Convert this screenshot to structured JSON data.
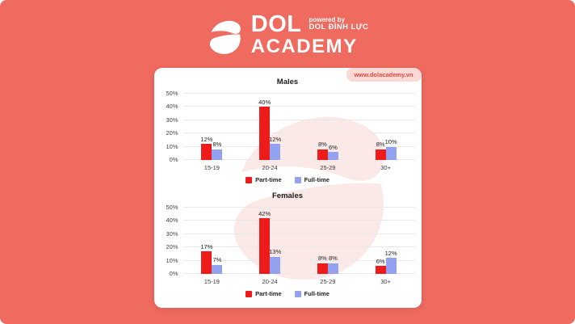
{
  "header": {
    "logo_word": "DOL",
    "logo_word2": "ACADEMY",
    "powered_by": "powered by",
    "powered_brand": "DOL ĐÌNH LỰC"
  },
  "card": {
    "website_badge": "www.dolacademy.vn"
  },
  "colors": {
    "background": "#EF6A5F",
    "card": "#FFFFFF",
    "part_time": "#EE1B1B",
    "full_time": "#92A1F0",
    "badge_bg": "#FBD9D5",
    "badge_text": "#E8453C",
    "gridline": "#E8E8E8",
    "watermark": "#FAE9E6"
  },
  "chart_data": [
    {
      "type": "bar",
      "title": "Males",
      "categories": [
        "15-19",
        "20-24",
        "25-29",
        "30+"
      ],
      "series": [
        {
          "name": "Part-time",
          "color": "#EE1B1B",
          "values": [
            12,
            40,
            8,
            8
          ]
        },
        {
          "name": "Full-time",
          "color": "#92A1F0",
          "values": [
            8,
            12,
            6,
            10
          ]
        }
      ],
      "xlabel": "",
      "ylabel": "",
      "ylim": [
        0,
        50
      ],
      "yticks": [
        "0%",
        "10%",
        "20%",
        "30%",
        "40%",
        "50%"
      ],
      "grid": true,
      "data_labels": true,
      "legend_position": "bottom"
    },
    {
      "type": "bar",
      "title": "Females",
      "categories": [
        "15-19",
        "20-24",
        "25-29",
        "30+"
      ],
      "series": [
        {
          "name": "Part-time",
          "color": "#EE1B1B",
          "values": [
            17,
            42,
            8,
            6
          ]
        },
        {
          "name": "Full-time",
          "color": "#92A1F0",
          "values": [
            7,
            13,
            8,
            12
          ]
        }
      ],
      "xlabel": "",
      "ylabel": "",
      "ylim": [
        0,
        50
      ],
      "yticks": [
        "0%",
        "10%",
        "20%",
        "30%",
        "40%",
        "50%"
      ],
      "grid": true,
      "data_labels": true,
      "legend_position": "bottom"
    }
  ]
}
